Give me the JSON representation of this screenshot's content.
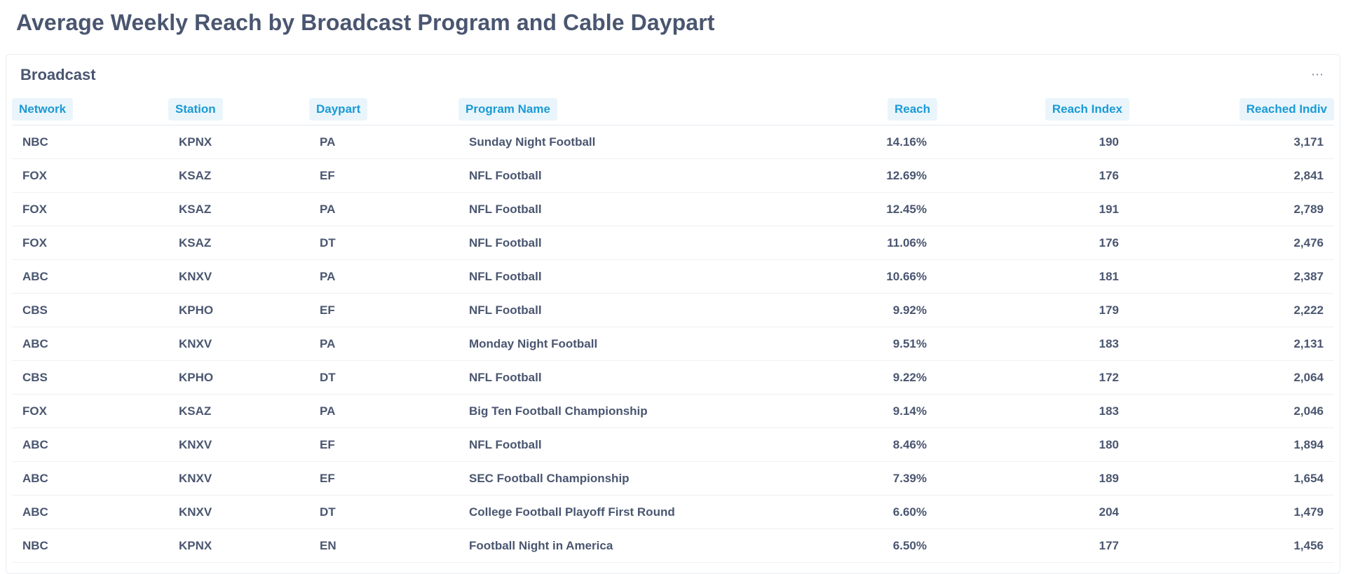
{
  "page": {
    "title": "Average Weekly Reach by Broadcast Program and Cable Daypart"
  },
  "broadcast": {
    "title": "Broadcast",
    "more_icon": "ellipsis-icon",
    "columns": [
      "Network",
      "Station",
      "Daypart",
      "Program Name",
      "Reach",
      "Reach Index",
      "Reached Indiv"
    ],
    "rows": [
      [
        "NBC",
        "KPNX",
        "PA",
        "Sunday Night Football",
        "14.16%",
        "190",
        "3,171"
      ],
      [
        "FOX",
        "KSAZ",
        "EF",
        "NFL Football",
        "12.69%",
        "176",
        "2,841"
      ],
      [
        "FOX",
        "KSAZ",
        "PA",
        "NFL Football",
        "12.45%",
        "191",
        "2,789"
      ],
      [
        "FOX",
        "KSAZ",
        "DT",
        "NFL Football",
        "11.06%",
        "176",
        "2,476"
      ],
      [
        "ABC",
        "KNXV",
        "PA",
        "NFL Football",
        "10.66%",
        "181",
        "2,387"
      ],
      [
        "CBS",
        "KPHO",
        "EF",
        "NFL Football",
        "9.92%",
        "179",
        "2,222"
      ],
      [
        "ABC",
        "KNXV",
        "PA",
        "Monday Night Football",
        "9.51%",
        "183",
        "2,131"
      ],
      [
        "CBS",
        "KPHO",
        "DT",
        "NFL Football",
        "9.22%",
        "172",
        "2,064"
      ],
      [
        "FOX",
        "KSAZ",
        "PA",
        "Big Ten Football Championship",
        "9.14%",
        "183",
        "2,046"
      ],
      [
        "ABC",
        "KNXV",
        "EF",
        "NFL Football",
        "8.46%",
        "180",
        "1,894"
      ],
      [
        "ABC",
        "KNXV",
        "EF",
        "SEC Football Championship",
        "7.39%",
        "189",
        "1,654"
      ],
      [
        "ABC",
        "KNXV",
        "DT",
        "College Football Playoff First Round",
        "6.60%",
        "204",
        "1,479"
      ],
      [
        "NBC",
        "KPNX",
        "EN",
        "Football Night in America",
        "6.50%",
        "177",
        "1,456"
      ]
    ]
  },
  "colors": {
    "header_text": "#1a9ad6",
    "header_bg": "#eaf5fb",
    "body_text": "#4a5670"
  }
}
